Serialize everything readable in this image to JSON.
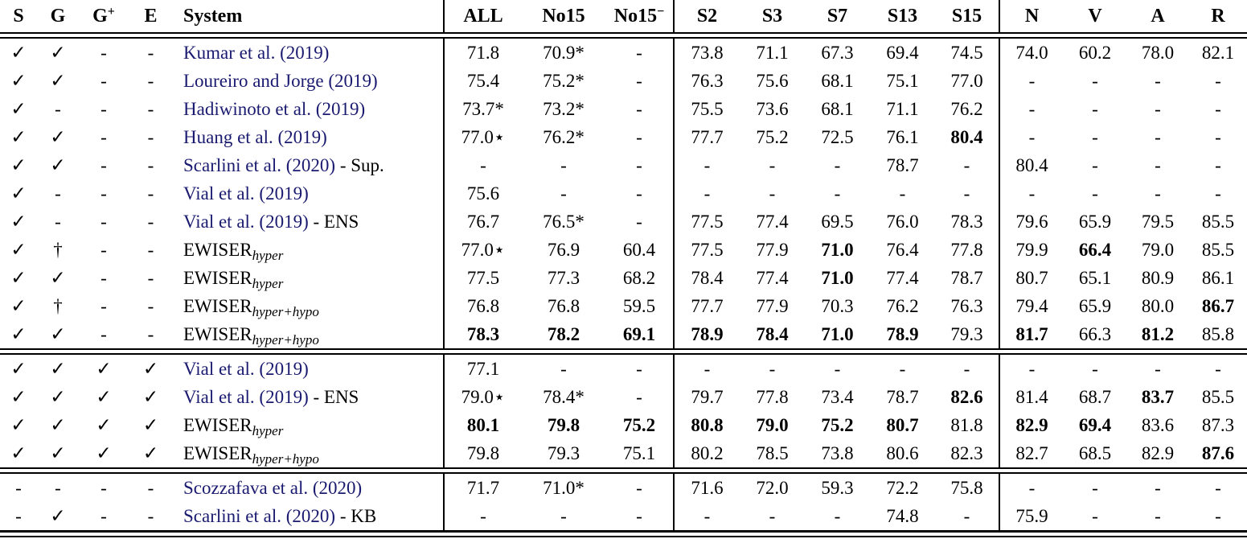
{
  "symbols": {
    "check": "✓",
    "dash": "-",
    "dagger": "†"
  },
  "colors": {
    "link": "#1a1a70",
    "text": "#000000"
  },
  "header": {
    "s": "S",
    "g": "G",
    "g_plus_base": "G",
    "g_plus_sup": "+",
    "e": "E",
    "system": "System",
    "all": "ALL",
    "no15": "No15",
    "no15m_base": "No15",
    "no15m_sup": "−",
    "s2": "S2",
    "s3": "S3",
    "s7": "S7",
    "s13": "S13",
    "s15": "S15",
    "n": "N",
    "v": "V",
    "a": "A",
    "r": "R"
  },
  "rows": [
    {
      "block": 1,
      "flags": [
        "check",
        "check",
        "dash",
        "dash"
      ],
      "system": {
        "before": "",
        "link": "Kumar et al. (2019)",
        "after": "",
        "sub": ""
      },
      "values": [
        "71.8",
        "70.9*",
        "-",
        "73.8",
        "71.1",
        "67.3",
        "69.4",
        "74.5",
        "74.0",
        "60.2",
        "78.0",
        "82.1"
      ],
      "bold": []
    },
    {
      "block": 1,
      "flags": [
        "check",
        "check",
        "dash",
        "dash"
      ],
      "system": {
        "before": "",
        "link": "Loureiro and Jorge (2019)",
        "after": "",
        "sub": ""
      },
      "values": [
        "75.4",
        "75.2*",
        "-",
        "76.3",
        "75.6",
        "68.1",
        "75.1",
        "77.0",
        "-",
        "-",
        "-",
        "-"
      ],
      "bold": []
    },
    {
      "block": 1,
      "flags": [
        "check",
        "dash",
        "dash",
        "dash"
      ],
      "system": {
        "before": "",
        "link": "Hadiwinoto et al. (2019)",
        "after": "",
        "sub": ""
      },
      "values": [
        "73.7*",
        "73.2*",
        "-",
        "75.5",
        "73.6",
        "68.1",
        "71.1",
        "76.2",
        "-",
        "-",
        "-",
        "-"
      ],
      "bold": []
    },
    {
      "block": 1,
      "flags": [
        "check",
        "check",
        "dash",
        "dash"
      ],
      "system": {
        "before": "",
        "link": "Huang et al. (2019)",
        "after": "",
        "sub": ""
      },
      "values": [
        "77.0⋆",
        "76.2*",
        "-",
        "77.7",
        "75.2",
        "72.5",
        "76.1",
        "80.4",
        "-",
        "-",
        "-",
        "-"
      ],
      "bold": [
        7
      ]
    },
    {
      "block": 1,
      "flags": [
        "check",
        "check",
        "dash",
        "dash"
      ],
      "system": {
        "before": "",
        "link": "Scarlini et al. (2020)",
        "after": " - Sup.",
        "sub": ""
      },
      "values": [
        "-",
        "-",
        "-",
        "-",
        "-",
        "-",
        "78.7",
        "-",
        "80.4",
        "-",
        "-",
        "-"
      ],
      "bold": []
    },
    {
      "block": 1,
      "flags": [
        "check",
        "dash",
        "dash",
        "dash"
      ],
      "system": {
        "before": "",
        "link": "Vial et al. (2019)",
        "after": "",
        "sub": ""
      },
      "values": [
        "75.6",
        "-",
        "-",
        "-",
        "-",
        "-",
        "-",
        "-",
        "-",
        "-",
        "-",
        "-"
      ],
      "bold": []
    },
    {
      "block": 1,
      "flags": [
        "check",
        "dash",
        "dash",
        "dash"
      ],
      "system": {
        "before": "",
        "link": "Vial et al. (2019)",
        "after": " - ENS",
        "sub": ""
      },
      "values": [
        "76.7",
        "76.5*",
        "-",
        "77.5",
        "77.4",
        "69.5",
        "76.0",
        "78.3",
        "79.6",
        "65.9",
        "79.5",
        "85.5"
      ],
      "bold": []
    },
    {
      "block": 1,
      "flags": [
        "check",
        "dagger",
        "dash",
        "dash"
      ],
      "system": {
        "before": "EWISER",
        "link": "",
        "after": "",
        "sub": "hyper"
      },
      "values": [
        "77.0⋆",
        "76.9",
        "60.4",
        "77.5",
        "77.9",
        "71.0",
        "76.4",
        "77.8",
        "79.9",
        "66.4",
        "79.0",
        "85.5"
      ],
      "bold": [
        5,
        9
      ]
    },
    {
      "block": 1,
      "flags": [
        "check",
        "check",
        "dash",
        "dash"
      ],
      "system": {
        "before": "EWISER",
        "link": "",
        "after": "",
        "sub": "hyper"
      },
      "values": [
        "77.5",
        "77.3",
        "68.2",
        "78.4",
        "77.4",
        "71.0",
        "77.4",
        "78.7",
        "80.7",
        "65.1",
        "80.9",
        "86.1"
      ],
      "bold": [
        5
      ]
    },
    {
      "block": 1,
      "flags": [
        "check",
        "dagger",
        "dash",
        "dash"
      ],
      "system": {
        "before": "EWISER",
        "link": "",
        "after": "",
        "sub": "hyper+hypo"
      },
      "values": [
        "76.8",
        "76.8",
        "59.5",
        "77.7",
        "77.9",
        "70.3",
        "76.2",
        "76.3",
        "79.4",
        "65.9",
        "80.0",
        "86.7"
      ],
      "bold": [
        11
      ]
    },
    {
      "block": 1,
      "flags": [
        "check",
        "check",
        "dash",
        "dash"
      ],
      "system": {
        "before": "EWISER",
        "link": "",
        "after": "",
        "sub": "hyper+hypo"
      },
      "values": [
        "78.3",
        "78.2",
        "69.1",
        "78.9",
        "78.4",
        "71.0",
        "78.9",
        "79.3",
        "81.7",
        "66.3",
        "81.2",
        "85.8"
      ],
      "bold": [
        0,
        1,
        2,
        3,
        4,
        5,
        6,
        8,
        10
      ]
    },
    {
      "block": 2,
      "flags": [
        "check",
        "check",
        "check",
        "check"
      ],
      "system": {
        "before": "",
        "link": "Vial et al. (2019)",
        "after": "",
        "sub": ""
      },
      "values": [
        "77.1",
        "-",
        "-",
        "-",
        "-",
        "-",
        "-",
        "-",
        "-",
        "-",
        "-",
        "-"
      ],
      "bold": []
    },
    {
      "block": 2,
      "flags": [
        "check",
        "check",
        "check",
        "check"
      ],
      "system": {
        "before": "",
        "link": "Vial et al. (2019)",
        "after": " - ENS",
        "sub": ""
      },
      "values": [
        "79.0⋆",
        "78.4*",
        "-",
        "79.7",
        "77.8",
        "73.4",
        "78.7",
        "82.6",
        "81.4",
        "68.7",
        "83.7",
        "85.5"
      ],
      "bold": [
        7,
        10
      ]
    },
    {
      "block": 2,
      "flags": [
        "check",
        "check",
        "check",
        "check"
      ],
      "system": {
        "before": "EWISER",
        "link": "",
        "after": "",
        "sub": "hyper"
      },
      "values": [
        "80.1",
        "79.8",
        "75.2",
        "80.8",
        "79.0",
        "75.2",
        "80.7",
        "81.8",
        "82.9",
        "69.4",
        "83.6",
        "87.3"
      ],
      "bold": [
        0,
        1,
        2,
        3,
        4,
        5,
        6,
        8,
        9
      ]
    },
    {
      "block": 2,
      "flags": [
        "check",
        "check",
        "check",
        "check"
      ],
      "system": {
        "before": "EWISER",
        "link": "",
        "after": "",
        "sub": "hyper+hypo"
      },
      "values": [
        "79.8",
        "79.3",
        "75.1",
        "80.2",
        "78.5",
        "73.8",
        "80.6",
        "82.3",
        "82.7",
        "68.5",
        "82.9",
        "87.6"
      ],
      "bold": [
        11
      ]
    },
    {
      "block": 3,
      "flags": [
        "dash",
        "dash",
        "dash",
        "dash"
      ],
      "system": {
        "before": "",
        "link": "Scozzafava et al. (2020)",
        "after": "",
        "sub": ""
      },
      "values": [
        "71.7",
        "71.0*",
        "-",
        "71.6",
        "72.0",
        "59.3",
        "72.2",
        "75.8",
        "-",
        "-",
        "-",
        "-"
      ],
      "bold": []
    },
    {
      "block": 3,
      "flags": [
        "dash",
        "check",
        "dash",
        "dash"
      ],
      "system": {
        "before": "",
        "link": "Scarlini et al. (2020)",
        "after": " - KB",
        "sub": ""
      },
      "values": [
        "-",
        "-",
        "-",
        "-",
        "-",
        "-",
        "74.8",
        "-",
        "75.9",
        "-",
        "-",
        "-"
      ],
      "bold": []
    }
  ]
}
